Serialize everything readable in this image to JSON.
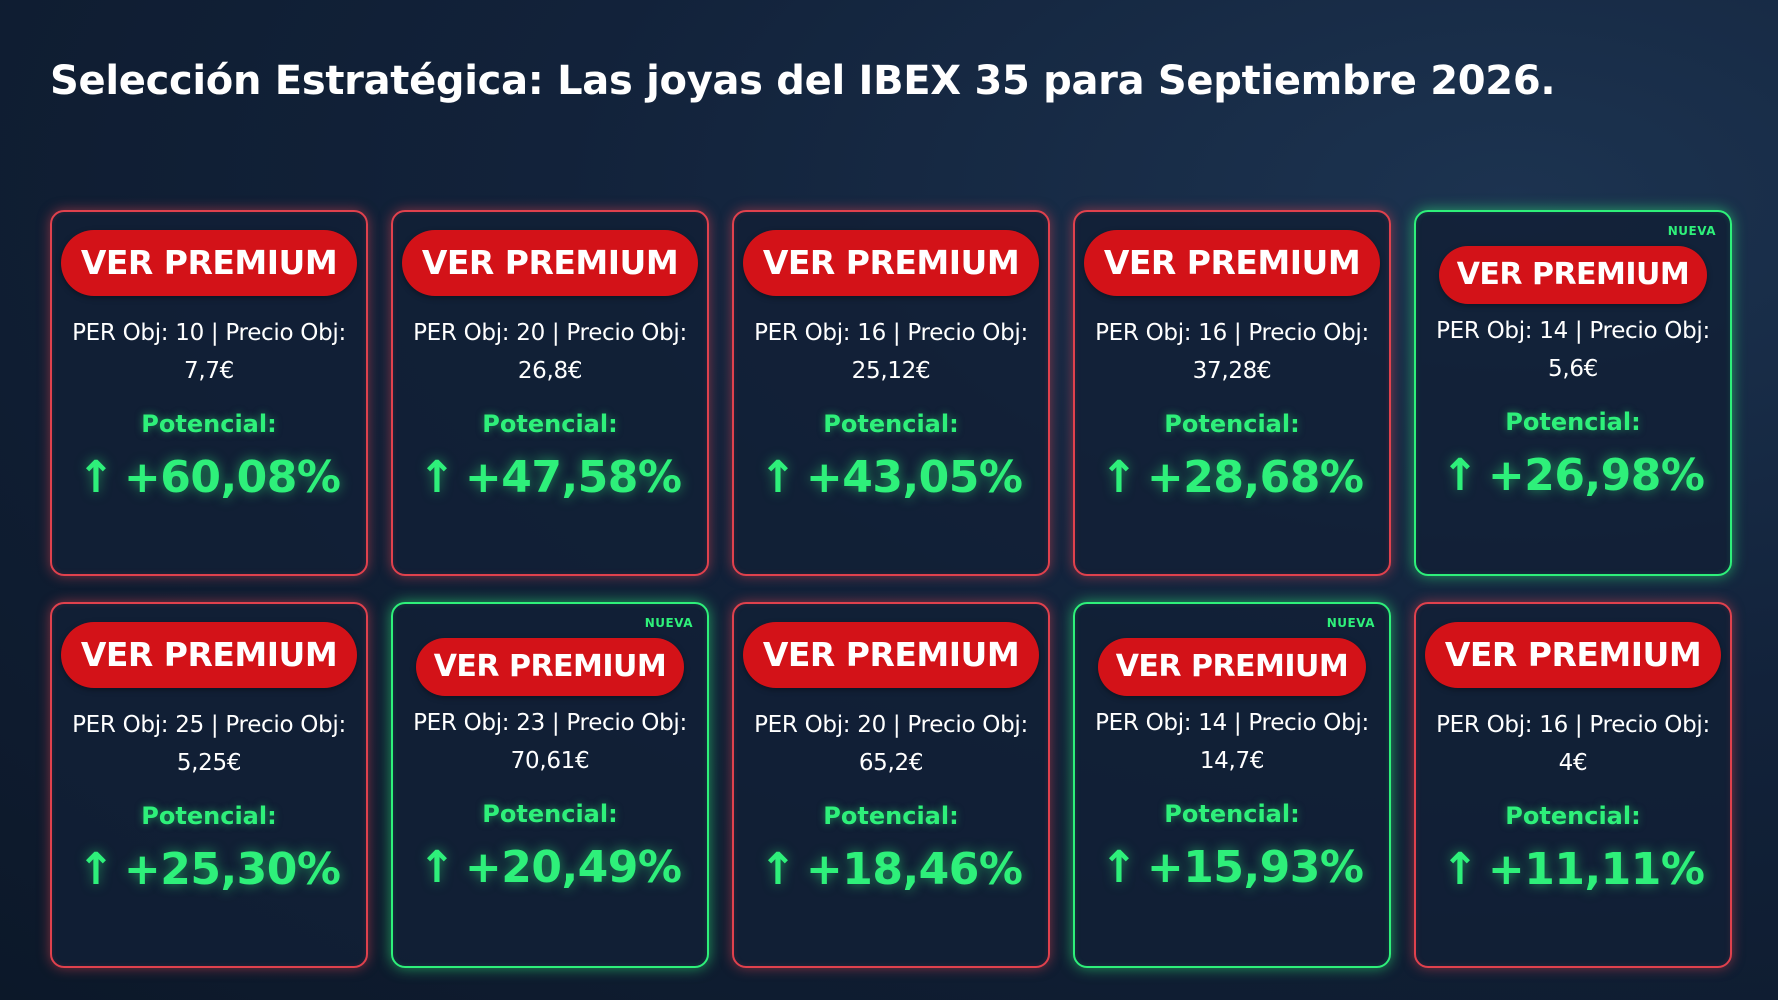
{
  "title": "Selección Estratégica: Las joyas del IBEX 35 para Septiembre 2026.",
  "colors": {
    "accent_green": "#2ef07a",
    "border_red": "#e0414d",
    "button_red": "#d31218",
    "background": "#12223a"
  },
  "cards": [
    {
      "button": "VER PREMIUM",
      "per_line1": "PER Obj: 10 | Precio Obj:",
      "per_line2": "7,7€",
      "potencial_label": "Potencial:",
      "arrow": "↑",
      "potencial_value": "+60,08%",
      "badge": "",
      "nueva": false
    },
    {
      "button": "VER PREMIUM",
      "per_line1": "PER Obj: 20 | Precio Obj:",
      "per_line2": "26,8€",
      "potencial_label": "Potencial:",
      "arrow": "↑",
      "potencial_value": "+47,58%",
      "badge": "",
      "nueva": false
    },
    {
      "button": "VER PREMIUM",
      "per_line1": "PER Obj: 16 | Precio Obj:",
      "per_line2": "25,12€",
      "potencial_label": "Potencial:",
      "arrow": "↑",
      "potencial_value": "+43,05%",
      "badge": "",
      "nueva": false
    },
    {
      "button": "VER PREMIUM",
      "per_line1": "PER Obj: 16 | Precio Obj:",
      "per_line2": "37,28€",
      "potencial_label": "Potencial:",
      "arrow": "↑",
      "potencial_value": "+28,68%",
      "badge": "",
      "nueva": false
    },
    {
      "button": "VER PREMIUM",
      "per_line1": "PER Obj: 14 | Precio Obj:",
      "per_line2": "5,6€",
      "potencial_label": "Potencial:",
      "arrow": "↑",
      "potencial_value": "+26,98%",
      "badge": "NUEVA",
      "nueva": true
    },
    {
      "button": "VER PREMIUM",
      "per_line1": "PER Obj: 25 | Precio Obj:",
      "per_line2": "5,25€",
      "potencial_label": "Potencial:",
      "arrow": "↑",
      "potencial_value": "+25,30%",
      "badge": "",
      "nueva": false
    },
    {
      "button": "VER PREMIUM",
      "per_line1": "PER Obj: 23 | Precio Obj:",
      "per_line2": "70,61€",
      "potencial_label": "Potencial:",
      "arrow": "↑",
      "potencial_value": "+20,49%",
      "badge": "NUEVA",
      "nueva": true
    },
    {
      "button": "VER PREMIUM",
      "per_line1": "PER Obj: 20 | Precio Obj:",
      "per_line2": "65,2€",
      "potencial_label": "Potencial:",
      "arrow": "↑",
      "potencial_value": "+18,46%",
      "badge": "",
      "nueva": false
    },
    {
      "button": "VER PREMIUM",
      "per_line1": "PER Obj: 14 | Precio Obj:",
      "per_line2": "14,7€",
      "potencial_label": "Potencial:",
      "arrow": "↑",
      "potencial_value": "+15,93%",
      "badge": "NUEVA",
      "nueva": true
    },
    {
      "button": "VER PREMIUM",
      "per_line1": "PER Obj: 16 | Precio Obj:",
      "per_line2": "4€",
      "potencial_label": "Potencial:",
      "arrow": "↑",
      "potencial_value": "+11,11%",
      "badge": "",
      "nueva": false
    }
  ]
}
